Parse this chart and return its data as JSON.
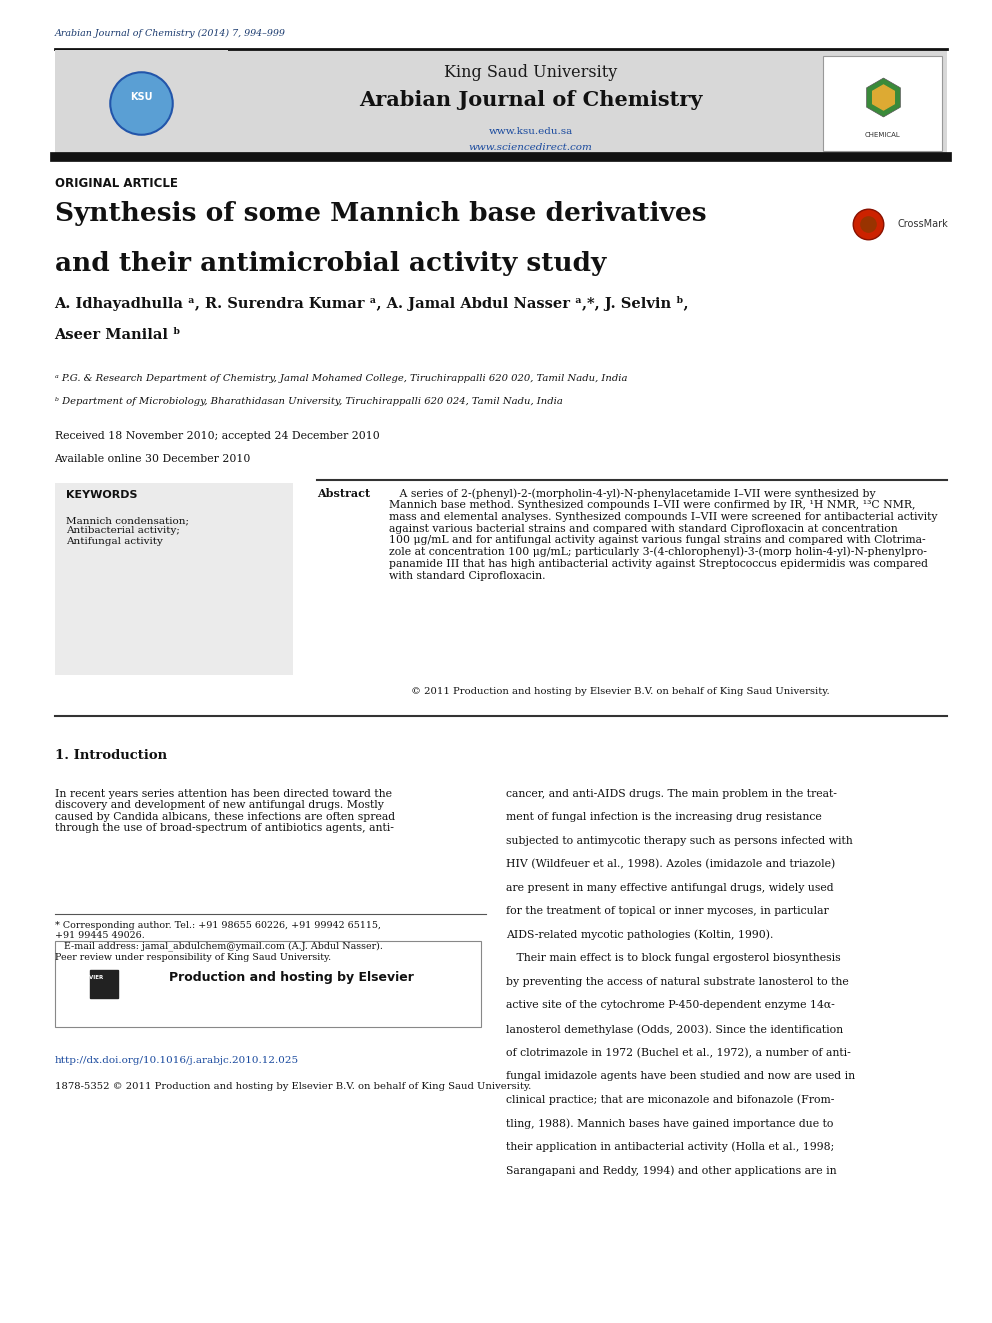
{
  "bg_color": "#ffffff",
  "page_width": 9.92,
  "page_height": 13.23,
  "journal_cite": "Arabian Journal of Chemistry (2014) 7, 994–999",
  "journal_cite_color": "#1a3a6e",
  "header_bg": "#d4d4d4",
  "header_title_1": "King Saud University",
  "header_title_2": "Arabian Journal of Chemistry",
  "header_url_1": "www.ksu.edu.sa",
  "header_url_2": "www.sciencedirect.com",
  "header_url_color": "#1a4a9e",
  "black_bar_color": "#111111",
  "section_label": "ORIGINAL ARTICLE",
  "article_title_1": "Synthesis of some Mannich base derivatives",
  "article_title_2": "and their antimicrobial activity study",
  "crossmark": "CrossMark",
  "authors_line1": "A. Idhayadhulla ᵃ, R. Surendra Kumar ᵃ, A. Jamal Abdul Nasser ᵃ,*, J. Selvin ᵇ,",
  "authors_line2": "Aseer Manilal ᵇ",
  "affil_a": "ᵃ P.G. & Research Department of Chemistry, Jamal Mohamed College, Tiruchirappalli 620 020, Tamil Nadu, India",
  "affil_b": "ᵇ Department of Microbiology, Bharathidasan University, Tiruchirappalli 620 024, Tamil Nadu, India",
  "received": "Received 18 November 2010; accepted 24 December 2010",
  "available": "Available online 30 December 2010",
  "keywords_title": "KEYWORDS",
  "keywords_items": "Mannich condensation;\nAntibacterial activity;\nAntifungal activity",
  "abstract_label": "Abstract",
  "abstract_body": "   A series of 2-(phenyl)-2-(morpholin-4-yl)-N-phenylacetamide I–VII were synthesized by\nMannich base method. Synthesized compounds I–VII were confirmed by IR, ¹H NMR, ¹³C NMR,\nmass and elemental analyses. Synthesized compounds I–VII were screened for antibacterial activity\nagainst various bacterial strains and compared with standard Ciprofloxacin at concentration\n100 μg/mL and for antifungal activity against various fungal strains and compared with Clotrima-\nzole at concentration 100 μg/mL; particularly 3-(4-chlorophenyl)-3-(morp holin-4-yl)-N-phenylpro-\npanamide III that has high antibacterial activity against Streptococcus epidermidis was compared\nwith standard Ciprofloxacin.",
  "copyright_text": "© 2011 Production and hosting by Elsevier B.V. on behalf of King Saud University.",
  "intro_heading": "1. Introduction",
  "intro_col1_text": "In recent years series attention has been directed toward the\ndiscovery and development of new antifungal drugs. Mostly\ncaused by Candida albicans, these infections are often spread\nthrough the use of broad-spectrum of antibiotics agents, anti-",
  "intro_col2_text": "cancer, and anti-AIDS drugs. The main problem in the treat-\nment of fungal infection is the increasing drug resistance\nsubjected to antimycotic therapy such as persons infected with\nHIV (Wildfeuer et al., 1998). Azoles (imidazole and triazole)\nare present in many effective antifungal drugs, widely used\nfor the treatment of topical or inner mycoses, in particular\nAIDS-related mycotic pathologies (Koltin, 1990).\n   Their main effect is to block fungal ergosterol biosynthesis\nby preventing the access of natural substrate lanosterol to the\nactive site of the cytochrome P-450-dependent enzyme 14α-\nlanosterol demethylase (Odds, 2003). Since the identification\nof clotrimazole in 1972 (Buchel et al., 1972), a number of anti-\nfungal imidazole agents have been studied and now are used in\nclinical practice; that are miconazole and bifonazole (From-\ntling, 1988). Mannich bases have gained importance due to\ntheir application in antibacterial activity (Holla et al., 1998;\nSarangapani and Reddy, 1994) and other applications are in",
  "footnote_text": "* Corresponding author. Tel.: +91 98655 60226, +91 99942 65115,\n+91 99445 49026.\n   E-mail address: jamal_abdulchem@ymail.com (A.J. Abdul Nasser).\nPeer review under responsibility of King Saud University.",
  "elsevier_text": "Production and hosting by Elsevier",
  "doi": "http://dx.doi.org/10.1016/j.arabjc.2010.12.025",
  "doi_color": "#1a4a9e",
  "footer_text": "1878-5352 © 2011 Production and hosting by Elsevier B.V. on behalf of King Saud University."
}
